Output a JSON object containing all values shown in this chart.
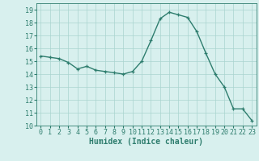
{
  "x": [
    0,
    1,
    2,
    3,
    4,
    5,
    6,
    7,
    8,
    9,
    10,
    11,
    12,
    13,
    14,
    15,
    16,
    17,
    18,
    19,
    20,
    21,
    22,
    23
  ],
  "y": [
    15.4,
    15.3,
    15.2,
    14.9,
    14.4,
    14.6,
    14.3,
    14.2,
    14.1,
    14.0,
    14.2,
    15.0,
    16.6,
    18.3,
    18.8,
    18.6,
    18.4,
    17.3,
    15.6,
    14.0,
    13.0,
    11.3,
    11.3,
    10.4
  ],
  "line_color": "#2e7d6e",
  "marker": "+",
  "marker_size": 3.5,
  "line_width": 1.0,
  "bg_color": "#d8f0ee",
  "grid_color": "#aad4cf",
  "xlabel": "Humidex (Indice chaleur)",
  "xlabel_fontsize": 7,
  "tick_fontsize": 6,
  "ylim": [
    10,
    19.5
  ],
  "xlim": [
    -0.5,
    23.5
  ],
  "yticks": [
    10,
    11,
    12,
    13,
    14,
    15,
    16,
    17,
    18,
    19
  ],
  "xticks": [
    0,
    1,
    2,
    3,
    4,
    5,
    6,
    7,
    8,
    9,
    10,
    11,
    12,
    13,
    14,
    15,
    16,
    17,
    18,
    19,
    20,
    21,
    22,
    23
  ]
}
